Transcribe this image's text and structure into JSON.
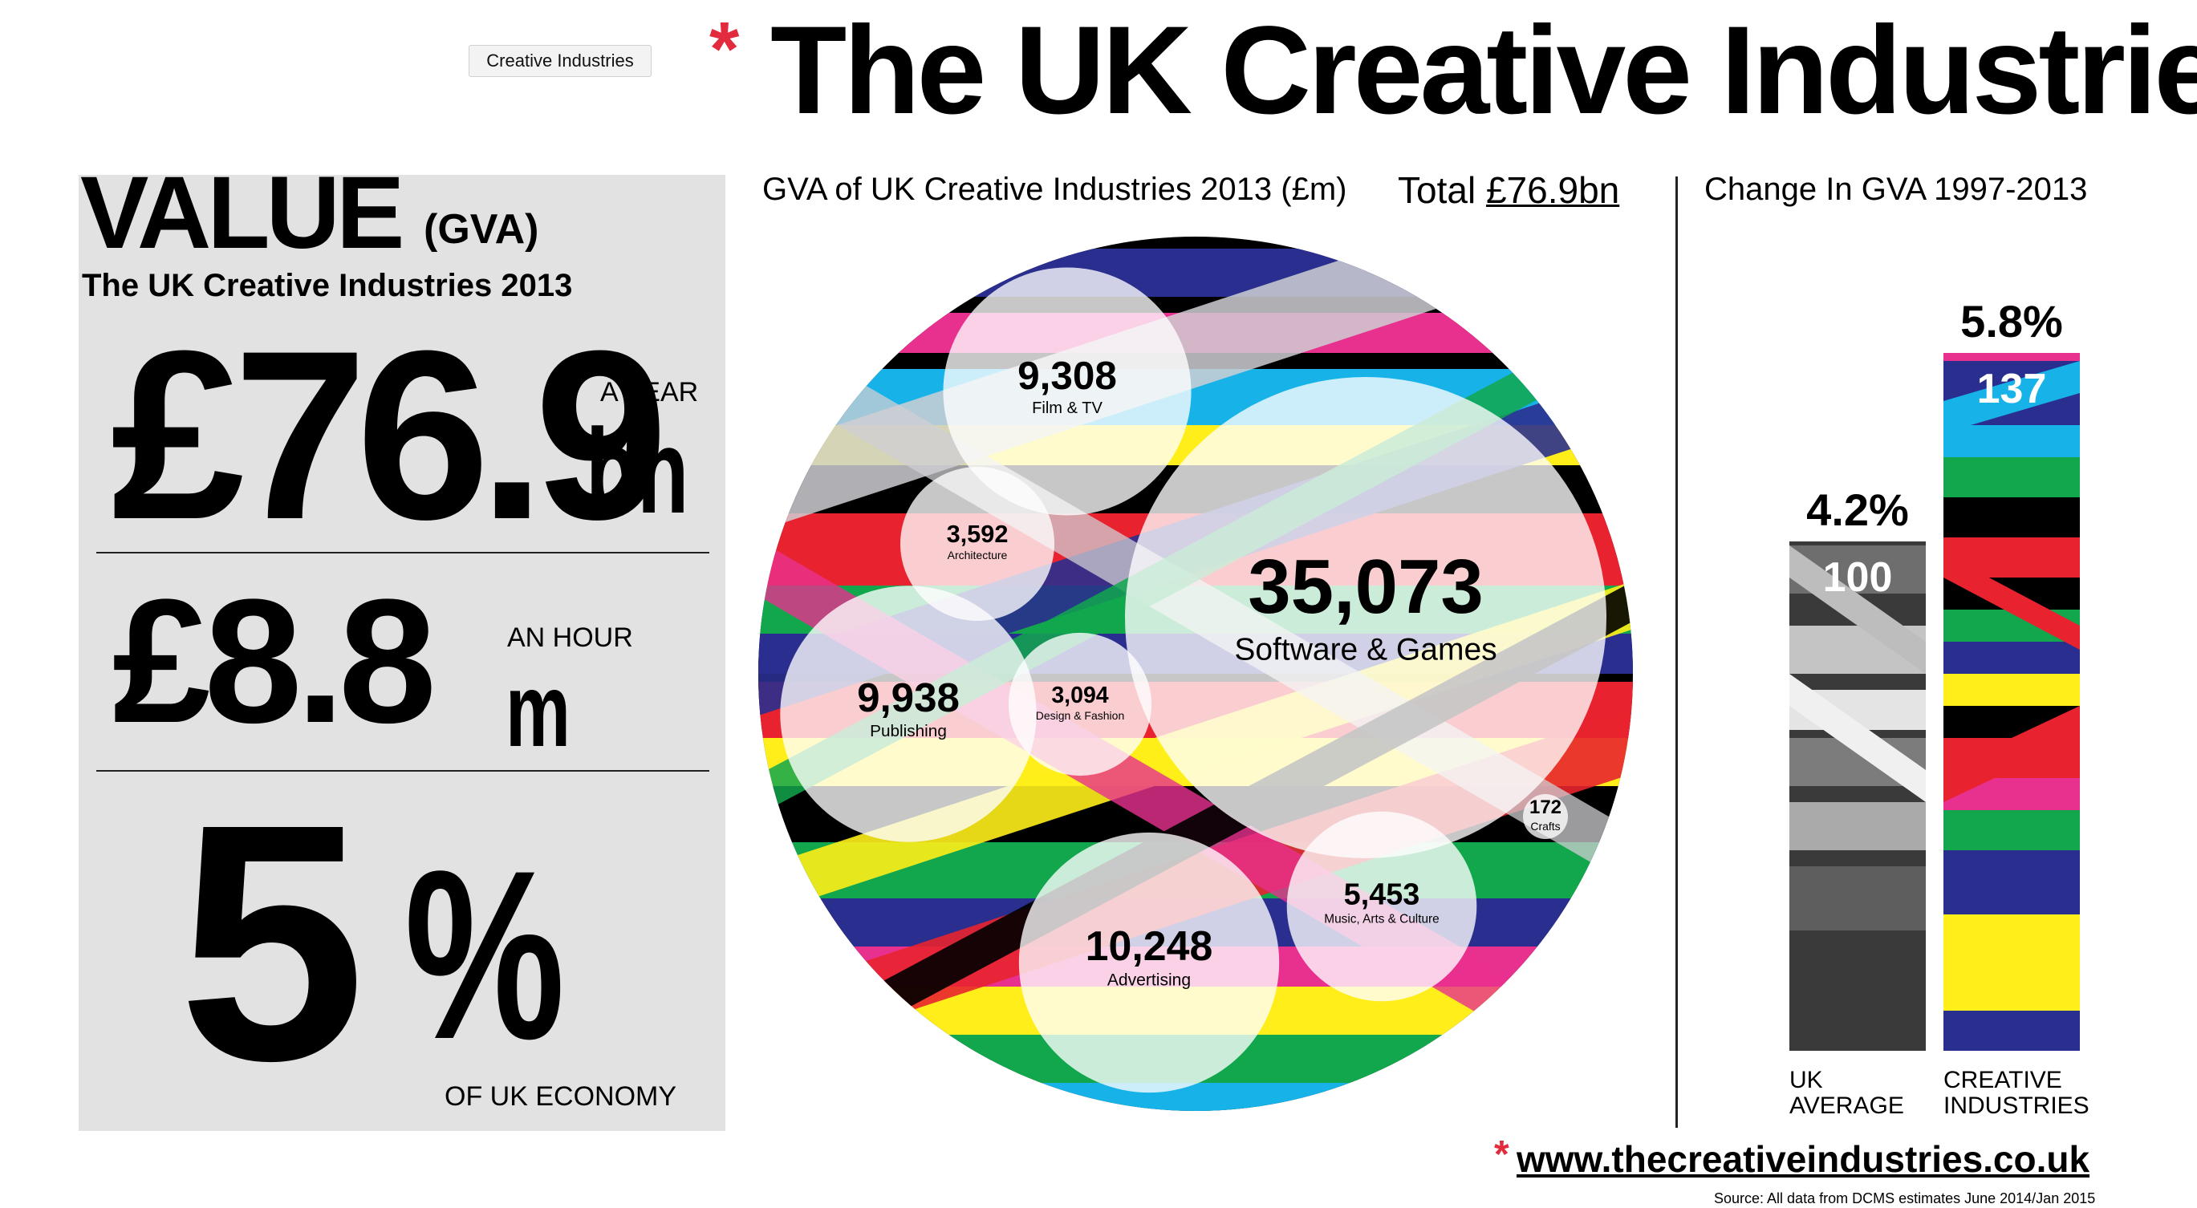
{
  "tab_label": "Creative Industries",
  "title": "The UK Creative Industries",
  "value_panel": {
    "heading": "VALUE",
    "heading_suffix": "(GVA)",
    "subheading": "The UK Creative Industries 2013",
    "stat1_value": "£76.9",
    "stat1_unit": "bn",
    "stat1_label": "A YEAR",
    "stat2_value": "£8.8",
    "stat2_unit": "m",
    "stat2_label": "AN HOUR",
    "stat3_value": "5",
    "stat3_unit": "%",
    "stat3_label": "OF UK ECONOMY"
  },
  "chart_data": [
    {
      "type": "bubble",
      "title": "GVA of UK Creative Industries 2013 (£m)",
      "total_label": "Total",
      "total_value": "£76.9bn",
      "bubbles": [
        {
          "label": "Software & Games",
          "value": 35073,
          "display": "35,073"
        },
        {
          "label": "Advertising",
          "value": 10248,
          "display": "10,248"
        },
        {
          "label": "Publishing",
          "value": 9938,
          "display": "9,938"
        },
        {
          "label": "Film & TV",
          "value": 9308,
          "display": "9,308"
        },
        {
          "label": "Music, Arts & Culture",
          "value": 5453,
          "display": "5,453"
        },
        {
          "label": "Architecture",
          "value": 3592,
          "display": "3,592"
        },
        {
          "label": "Design & Fashion",
          "value": 3094,
          "display": "3,094"
        },
        {
          "label": "Crafts",
          "value": 172,
          "display": "172"
        }
      ]
    },
    {
      "type": "bar",
      "title": "Change In GVA 1997-2013",
      "categories": [
        "UK AVERAGE",
        "CREATIVE INDUSTRIES"
      ],
      "values": [
        100,
        137
      ],
      "value_labels": [
        "100",
        "137"
      ],
      "growth_labels": [
        "4.2%",
        "5.8%"
      ],
      "ylim": [
        0,
        137
      ]
    }
  ],
  "footer": {
    "url": "www.thecreativeindustries.co.uk",
    "source": "Source: All data from DCMS estimates June 2014/Jan 2015"
  },
  "colors": {
    "accent_red": "#e22b3c",
    "panel_bg": "#e2e2e3",
    "stripe_black": "#000000",
    "stripe_navy": "#2a2f8f",
    "stripe_red": "#e8232f",
    "stripe_green": "#12a74d",
    "stripe_blue": "#17b3e8",
    "stripe_yellow": "#ffee1a",
    "stripe_pink": "#e8318f",
    "stripe_gray": "#cfcfd3"
  }
}
